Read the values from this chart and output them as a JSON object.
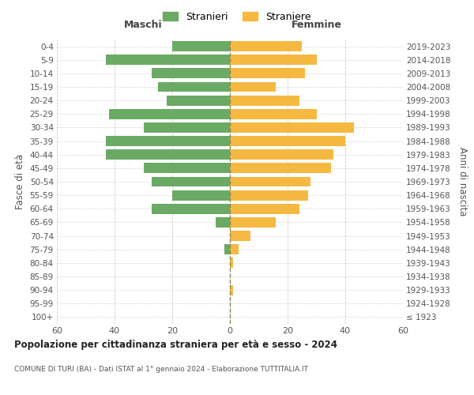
{
  "age_groups": [
    "100+",
    "95-99",
    "90-94",
    "85-89",
    "80-84",
    "75-79",
    "70-74",
    "65-69",
    "60-64",
    "55-59",
    "50-54",
    "45-49",
    "40-44",
    "35-39",
    "30-34",
    "25-29",
    "20-24",
    "15-19",
    "10-14",
    "5-9",
    "0-4"
  ],
  "birth_years": [
    "≤ 1923",
    "1924-1928",
    "1929-1933",
    "1934-1938",
    "1939-1943",
    "1944-1948",
    "1949-1953",
    "1954-1958",
    "1959-1963",
    "1964-1968",
    "1969-1973",
    "1974-1978",
    "1979-1983",
    "1984-1988",
    "1989-1993",
    "1994-1998",
    "1999-2003",
    "2004-2008",
    "2009-2013",
    "2014-2018",
    "2019-2023"
  ],
  "males": [
    0,
    0,
    0,
    0,
    0,
    2,
    0,
    5,
    27,
    20,
    27,
    30,
    43,
    43,
    30,
    42,
    22,
    25,
    27,
    43,
    20
  ],
  "females": [
    0,
    0,
    1,
    0,
    1,
    3,
    7,
    16,
    24,
    27,
    28,
    35,
    36,
    40,
    43,
    30,
    24,
    16,
    26,
    30,
    25
  ],
  "male_color": "#6aaa64",
  "female_color": "#f5b942",
  "title_main": "Popolazione per cittadinanza straniera per età e sesso - 2024",
  "subtitle": "COMUNE DI TURI (BA) - Dati ISTAT al 1° gennaio 2024 - Elaborazione TUTTITALIA.IT",
  "xlabel_left": "Maschi",
  "xlabel_right": "Femmine",
  "ylabel_left": "Fasce di età",
  "ylabel_right": "Anni di nascita",
  "legend_male": "Stranieri",
  "legend_female": "Straniere",
  "xlim": 60,
  "background_color": "#ffffff",
  "grid_color": "#cccccc"
}
